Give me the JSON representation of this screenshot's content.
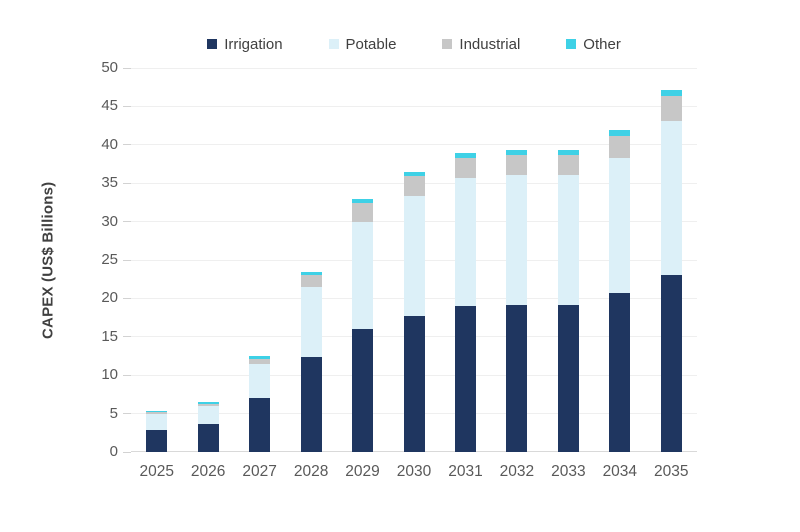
{
  "chart_data": {
    "type": "bar",
    "stacked": true,
    "title": "",
    "xlabel": "",
    "ylabel": "CAPEX (US$ Billions)",
    "ylim": [
      0,
      50
    ],
    "ytick_step": 5,
    "grid": true,
    "legend_position": "top-center",
    "categories": [
      "2025",
      "2026",
      "2027",
      "2028",
      "2029",
      "2030",
      "2031",
      "2032",
      "2033",
      "2034",
      "2035"
    ],
    "series": [
      {
        "name": "Irrigation",
        "color": "#1F3660",
        "values": [
          2.9,
          3.6,
          7.0,
          12.4,
          16.0,
          17.7,
          19.0,
          19.1,
          19.2,
          20.7,
          23.1
        ]
      },
      {
        "name": "Potable",
        "color": "#DCF0F8",
        "values": [
          2.1,
          2.4,
          4.4,
          9.1,
          14.0,
          15.6,
          16.7,
          17.0,
          16.9,
          17.6,
          20.0
        ]
      },
      {
        "name": "Industrial",
        "color": "#C7C7C7",
        "values": [
          0.3,
          0.3,
          0.7,
          1.5,
          2.4,
          2.7,
          2.6,
          2.6,
          2.6,
          2.8,
          3.2
        ]
      },
      {
        "name": "Other",
        "color": "#3ED1E6",
        "values": [
          0.1,
          0.2,
          0.4,
          0.5,
          0.5,
          0.5,
          0.6,
          0.6,
          0.6,
          0.8,
          0.8
        ]
      }
    ],
    "totals": [
      5.4,
      6.5,
      12.5,
      23.5,
      32.9,
      36.5,
      38.9,
      39.3,
      39.3,
      41.9,
      47.1
    ]
  },
  "colors": {
    "background": "#FFFFFF",
    "gridline": "#EFEFEF",
    "axis_line": "#D9D9D9",
    "tick": "#D2D2D2",
    "axis_tick_label": "#595959",
    "legend_text": "#404040",
    "axis_title": "#404040"
  }
}
